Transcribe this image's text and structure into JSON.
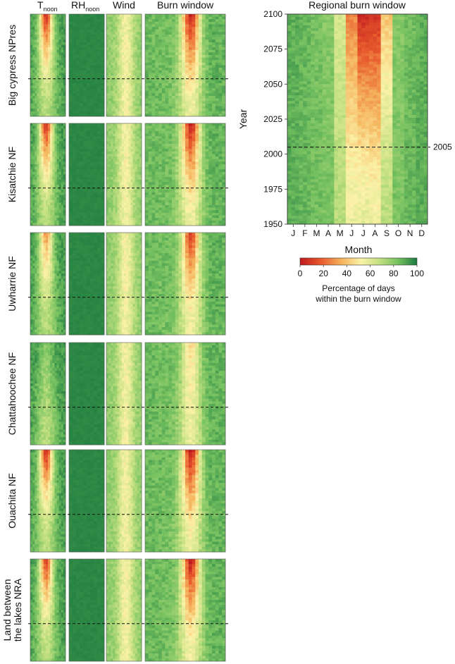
{
  "figure": {
    "column_headers": [
      {
        "main": "T",
        "sub": "noon"
      },
      {
        "main": "RH",
        "sub": "noon"
      },
      {
        "main": "Wind",
        "sub": ""
      },
      {
        "main": "Burn window",
        "sub": ""
      }
    ],
    "regional_title": "Regional burn window"
  },
  "chart_data": [
    {
      "type": "heatmap",
      "title": "Regional burn window",
      "xlabel": "Month",
      "ylabel": "Year",
      "x_categories": [
        "J",
        "F",
        "M",
        "A",
        "M",
        "J",
        "J",
        "A",
        "S",
        "O",
        "N",
        "D"
      ],
      "ylim": [
        1950,
        2100
      ],
      "yticks": [
        1950,
        1975,
        2000,
        2025,
        2050,
        2075,
        2100
      ],
      "reference_line": {
        "year": 2005,
        "label": "2005",
        "style": "dashed"
      },
      "value_label": "Percentage of days within the burn window",
      "colorbar": {
        "title": "Month",
        "label_line1": "Percentage of days",
        "label_line2": "within the burn window",
        "ticks": [
          0,
          20,
          40,
          60,
          80,
          100
        ],
        "colors": [
          "#c0181e",
          "#e85a2c",
          "#f5b55e",
          "#fbf2a8",
          "#c2e080",
          "#74c060",
          "#1b7a3e"
        ]
      },
      "monthly_percent_1950": [
        88,
        86,
        84,
        82,
        70,
        56,
        58,
        55,
        70,
        82,
        86,
        88
      ],
      "monthly_percent_2100": [
        88,
        86,
        83,
        80,
        62,
        26,
        5,
        8,
        40,
        80,
        84,
        88
      ]
    },
    {
      "type": "heatmap",
      "title": "Site panels",
      "sites": [
        "Big cypress NPres",
        "Kisatchie NF",
        "Uwharrie NF",
        "Chattahoochee NF",
        "Ouachita NF",
        "Land between the lakes NRA"
      ],
      "site_label_lines": [
        [
          "Big cypress NPres"
        ],
        [
          "Kisatchie NF"
        ],
        [
          "Uwharrie NF"
        ],
        [
          "Chattahoochee NF"
        ],
        [
          "Ouachita NF"
        ],
        [
          "Land between",
          "the lakes NRA"
        ]
      ],
      "variables": [
        "Tnoon",
        "RHnoon",
        "Wind",
        "Burn window"
      ],
      "reference_line_year": 2005,
      "burn_window_min_percent_2100": [
        0,
        0,
        10,
        45,
        0,
        0
      ],
      "tnoon_min_percent_2100": [
        5,
        5,
        30,
        80,
        5,
        10
      ]
    }
  ]
}
